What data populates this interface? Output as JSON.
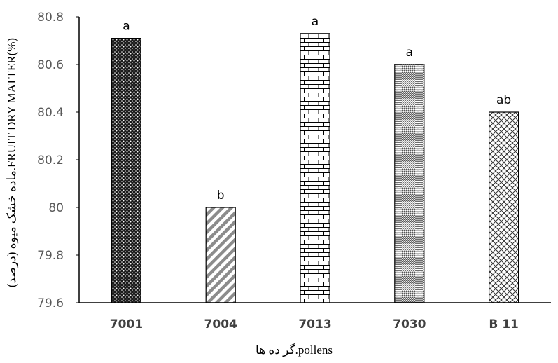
{
  "chart_data": {
    "type": "bar",
    "title": "",
    "xlabel": "گر ده ها.pollens",
    "ylabel": "ماده خشک میوه (درصد).FRUIT DRY MATTER(%)",
    "ylim": [
      79.6,
      80.8
    ],
    "yticks": [
      79.6,
      79.8,
      80,
      80.2,
      80.4,
      80.6,
      80.8
    ],
    "ytick_labels": [
      "79.6",
      "79.8",
      "80",
      "80.2",
      "80.4",
      "80.6",
      "80.8"
    ],
    "categories": [
      "7001",
      "7004",
      "7013",
      "7030",
      "B 11"
    ],
    "values": [
      80.71,
      80.0,
      80.73,
      80.6,
      80.4
    ],
    "significance_letters": [
      "a",
      "b",
      "a",
      "a",
      "ab"
    ],
    "patterns": [
      "dots-dark",
      "diagonal-stripes",
      "brick",
      "zigzag",
      "crosshatch"
    ],
    "grid": false,
    "legend": "none"
  }
}
